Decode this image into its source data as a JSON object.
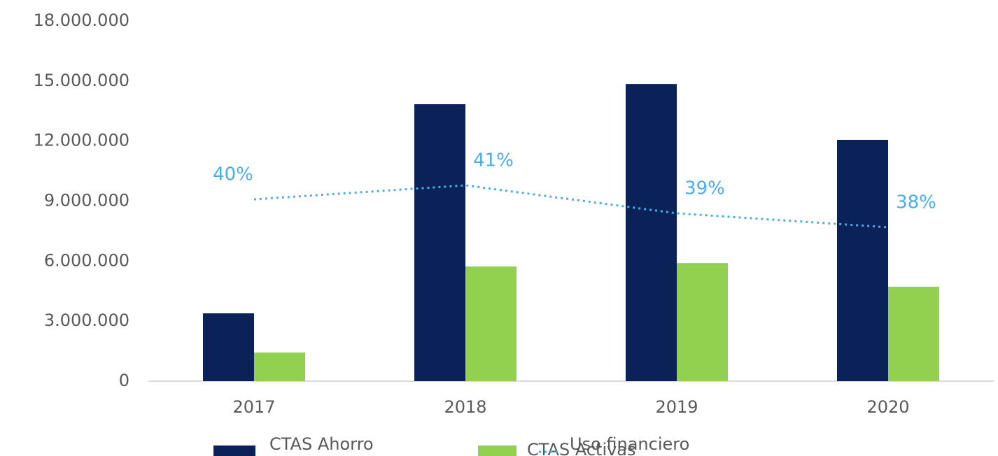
{
  "chart_data": {
    "type": "bar",
    "categories": [
      "2017",
      "2018",
      "2019",
      "2020"
    ],
    "series": [
      {
        "name": "CTAS Ahorro",
        "color": "#0b2259",
        "values": [
          3390000,
          13840000,
          14850000,
          12060000
        ]
      },
      {
        "name": "CTAS Activas",
        "color": "#92d050",
        "values": [
          1430000,
          5730000,
          5900000,
          4720000
        ]
      },
      {
        "name": "Uso financiero",
        "color": "#4aaee6",
        "type": "line",
        "style": "dotted",
        "axis": "y2",
        "values": [
          40,
          41,
          39,
          38
        ],
        "value_labels": [
          "40%",
          "41%",
          "39%",
          "38%"
        ]
      }
    ],
    "ylim": [
      0,
      18000000
    ],
    "yticks": [
      0,
      {
        "value": 3000000,
        "label": "3.000.000"
      },
      {
        "value": 6000000,
        "label": "6.000.000"
      },
      {
        "value": 9000000,
        "label": "9.000.000"
      },
      {
        "value": 12000000,
        "label": "12.000.000"
      },
      {
        "value": 15000000,
        "label": "15.000.000"
      },
      {
        "value": 18000000,
        "label": "18.000.000"
      }
    ],
    "y2lim": [
      27,
      52.75
    ],
    "legend": "bottom"
  }
}
